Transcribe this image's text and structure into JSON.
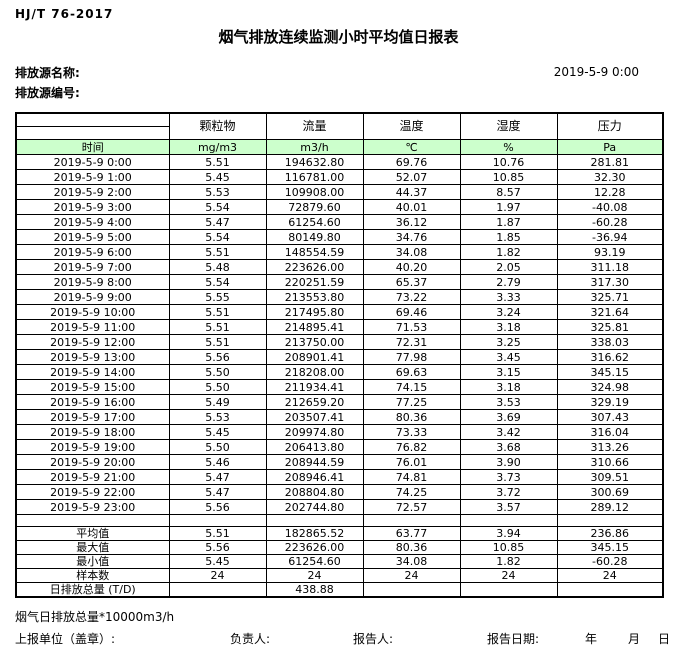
{
  "page": {
    "doc_code": "HJ/T 76-2017",
    "title": "烟气排放连续监测小时平均值日报表",
    "source_name_label": "排放源名称:",
    "source_id_label": "排放源编号:",
    "report_datetime": "2019-5-9 0:00"
  },
  "colors": {
    "header_green": "#ccffcc",
    "border": "#000000",
    "text": "#000000"
  },
  "table": {
    "time_header": "时间",
    "columns": [
      {
        "label": "颗粒物",
        "unit": "mg/m3"
      },
      {
        "label": "流量",
        "unit": "m3/h"
      },
      {
        "label": "温度",
        "unit": "℃"
      },
      {
        "label": "湿度",
        "unit": "%"
      },
      {
        "label": "压力",
        "unit": "Pa"
      }
    ],
    "rows": [
      {
        "time": "2019-5-9 0:00",
        "values": [
          "5.51",
          "194632.80",
          "69.76",
          "10.76",
          "281.81"
        ]
      },
      {
        "time": "2019-5-9 1:00",
        "values": [
          "5.45",
          "116781.00",
          "52.07",
          "10.85",
          "32.30"
        ]
      },
      {
        "time": "2019-5-9 2:00",
        "values": [
          "5.53",
          "109908.00",
          "44.37",
          "8.57",
          "12.28"
        ]
      },
      {
        "time": "2019-5-9 3:00",
        "values": [
          "5.54",
          "72879.60",
          "40.01",
          "1.97",
          "-40.08"
        ]
      },
      {
        "time": "2019-5-9 4:00",
        "values": [
          "5.47",
          "61254.60",
          "36.12",
          "1.87",
          "-60.28"
        ]
      },
      {
        "time": "2019-5-9 5:00",
        "values": [
          "5.54",
          "80149.80",
          "34.76",
          "1.85",
          "-36.94"
        ]
      },
      {
        "time": "2019-5-9 6:00",
        "values": [
          "5.51",
          "148554.59",
          "34.08",
          "1.82",
          "93.19"
        ]
      },
      {
        "time": "2019-5-9 7:00",
        "values": [
          "5.48",
          "223626.00",
          "40.20",
          "2.05",
          "311.18"
        ]
      },
      {
        "time": "2019-5-9 8:00",
        "values": [
          "5.54",
          "220251.59",
          "65.37",
          "2.79",
          "317.30"
        ]
      },
      {
        "time": "2019-5-9 9:00",
        "values": [
          "5.55",
          "213553.80",
          "73.22",
          "3.33",
          "325.71"
        ]
      },
      {
        "time": "2019-5-9 10:00",
        "values": [
          "5.51",
          "217495.80",
          "69.46",
          "3.24",
          "321.64"
        ]
      },
      {
        "time": "2019-5-9 11:00",
        "values": [
          "5.51",
          "214895.41",
          "71.53",
          "3.18",
          "325.81"
        ]
      },
      {
        "time": "2019-5-9 12:00",
        "values": [
          "5.51",
          "213750.00",
          "72.31",
          "3.25",
          "338.03"
        ]
      },
      {
        "time": "2019-5-9 13:00",
        "values": [
          "5.56",
          "208901.41",
          "77.98",
          "3.45",
          "316.62"
        ]
      },
      {
        "time": "2019-5-9 14:00",
        "values": [
          "5.50",
          "218208.00",
          "69.63",
          "3.15",
          "345.15"
        ]
      },
      {
        "time": "2019-5-9 15:00",
        "values": [
          "5.50",
          "211934.41",
          "74.15",
          "3.18",
          "324.98"
        ]
      },
      {
        "time": "2019-5-9 16:00",
        "values": [
          "5.49",
          "212659.20",
          "77.25",
          "3.53",
          "329.19"
        ]
      },
      {
        "time": "2019-5-9 17:00",
        "values": [
          "5.53",
          "203507.41",
          "80.36",
          "3.69",
          "307.43"
        ]
      },
      {
        "time": "2019-5-9 18:00",
        "values": [
          "5.45",
          "209974.80",
          "73.33",
          "3.42",
          "316.04"
        ]
      },
      {
        "time": "2019-5-9 19:00",
        "values": [
          "5.50",
          "206413.80",
          "76.82",
          "3.68",
          "313.26"
        ]
      },
      {
        "time": "2019-5-9 20:00",
        "values": [
          "5.46",
          "208944.59",
          "76.01",
          "3.90",
          "310.66"
        ]
      },
      {
        "time": "2019-5-9 21:00",
        "values": [
          "5.47",
          "208946.41",
          "74.81",
          "3.73",
          "309.51"
        ]
      },
      {
        "time": "2019-5-9 22:00",
        "values": [
          "5.47",
          "208804.80",
          "74.25",
          "3.72",
          "300.69"
        ]
      },
      {
        "time": "2019-5-9 23:00",
        "values": [
          "5.56",
          "202744.80",
          "72.57",
          "3.57",
          "289.12"
        ]
      }
    ],
    "summary": [
      {
        "label": "平均值",
        "values": [
          "5.51",
          "182865.52",
          "63.77",
          "3.94",
          "236.86"
        ]
      },
      {
        "label": "最大值",
        "values": [
          "5.56",
          "223626.00",
          "80.36",
          "10.85",
          "345.15"
        ]
      },
      {
        "label": "最小值",
        "values": [
          "5.45",
          "61254.60",
          "34.08",
          "1.82",
          "-60.28"
        ]
      },
      {
        "label": "样本数",
        "values": [
          "24",
          "24",
          "24",
          "24",
          "24"
        ]
      },
      {
        "label": "日排放总量 (T/D)",
        "values": [
          "",
          "438.88",
          "",
          "",
          ""
        ]
      }
    ]
  },
  "footer": {
    "note": "烟气日排放总量*10000m3/h",
    "unit_label": "上报单位（盖章）:",
    "responsible_label": "负责人:",
    "reporter_label": "报告人:",
    "report_date_label": "报告日期:",
    "year_label": "年",
    "month_label": "月",
    "day_label": "日"
  }
}
